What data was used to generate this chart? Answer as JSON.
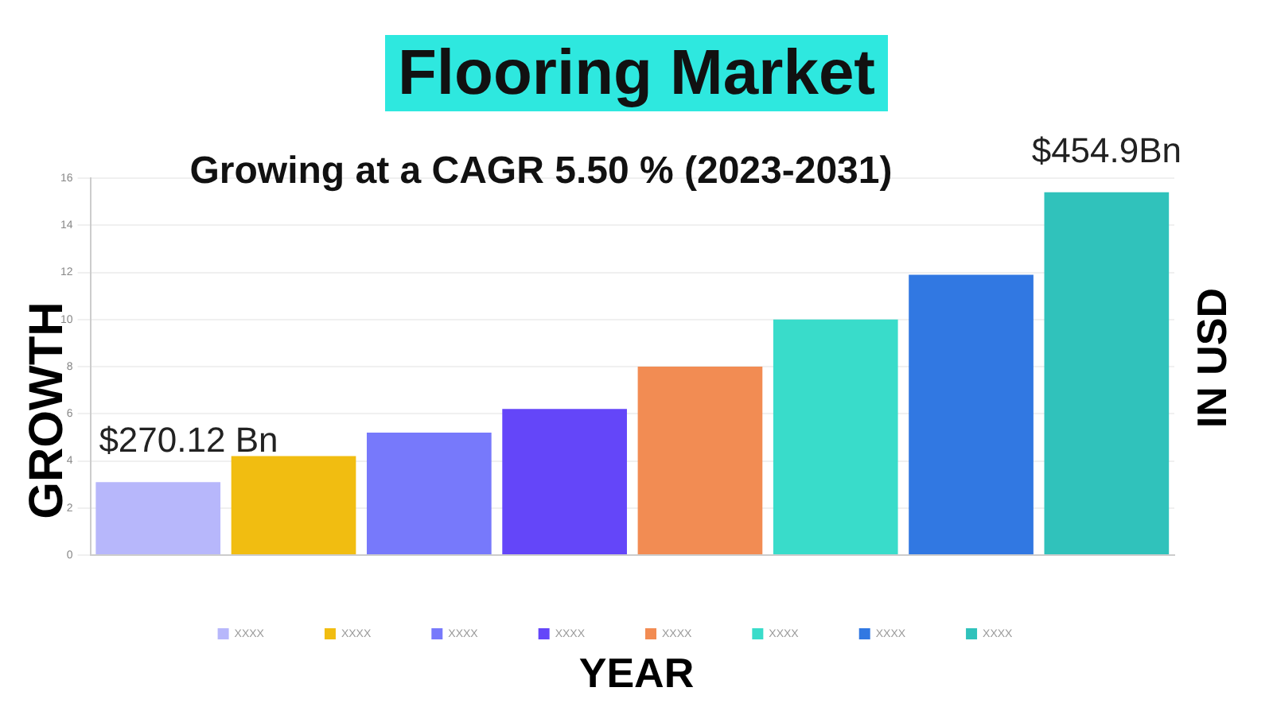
{
  "chart_data": {
    "type": "bar",
    "title": "Flooring Market",
    "subtitle": "Growing at a CAGR 5.50 % (2023-2031)",
    "xlabel": "YEAR",
    "ylabel": "GROWTH",
    "y2label": "IN USD",
    "categories": [
      null,
      null,
      null,
      null,
      null,
      null,
      null,
      null
    ],
    "series": [
      {
        "name": "XXXX",
        "color": "#b7b7fb",
        "values": [
          3.1,
          null,
          null,
          null,
          null,
          null,
          null,
          null
        ]
      },
      {
        "name": "XXXX",
        "color": "#f1bd11",
        "values": [
          null,
          4.2,
          null,
          null,
          null,
          null,
          null,
          null
        ]
      },
      {
        "name": "XXXX",
        "color": "#7779fb",
        "values": [
          null,
          null,
          5.2,
          null,
          null,
          null,
          null,
          null
        ]
      },
      {
        "name": "XXXX",
        "color": "#6446f9",
        "values": [
          null,
          null,
          null,
          6.2,
          null,
          null,
          null,
          null
        ]
      },
      {
        "name": "XXXX",
        "color": "#f28c53",
        "values": [
          null,
          null,
          null,
          null,
          8.0,
          null,
          null,
          null
        ]
      },
      {
        "name": "XXXX",
        "color": "#39dcca",
        "values": [
          null,
          null,
          null,
          null,
          null,
          10.0,
          null,
          null
        ]
      },
      {
        "name": "XXXX",
        "color": "#3178e2",
        "values": [
          null,
          null,
          null,
          null,
          null,
          null,
          11.9,
          null
        ]
      },
      {
        "name": "XXXX",
        "color": "#30c2bb",
        "values": [
          null,
          null,
          null,
          null,
          null,
          null,
          null,
          15.4
        ]
      }
    ],
    "annotations": [
      "$270.12 Bn",
      "$454.9Bn"
    ],
    "ylim": [
      0,
      16
    ],
    "yticks": [
      0,
      2,
      4,
      6,
      8,
      10,
      12,
      14,
      16
    ],
    "grid": "y",
    "legend": "bottom"
  }
}
